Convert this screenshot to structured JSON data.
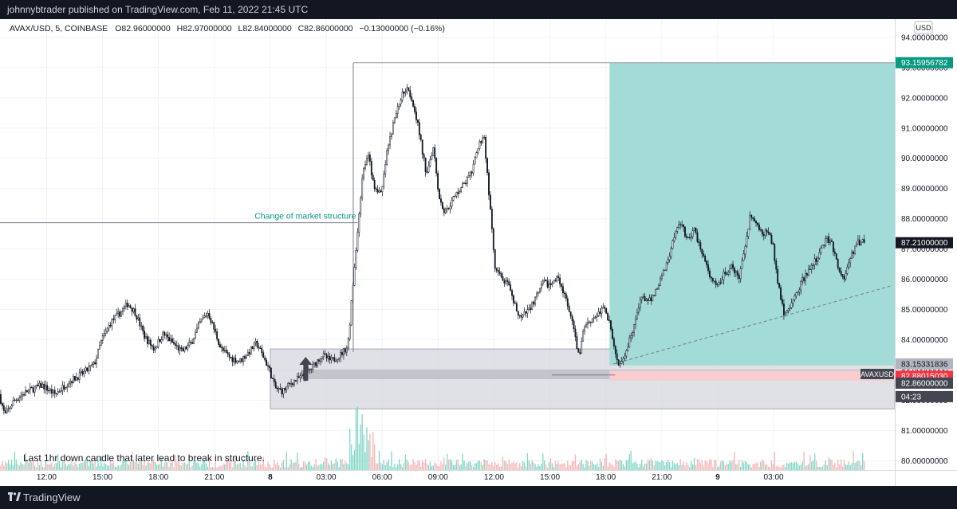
{
  "header": {
    "publisher_line": "johnnybtrader published on TradingView.com, Feb 11, 2022 21:45 UTC"
  },
  "footer": {
    "brand": "TradingView",
    "logo_icon": "tradingview-logo-icon"
  },
  "chart_data": {
    "type": "candlestick",
    "symbol_line": "AVAX/USD, 5, COINBASE",
    "ohlc_readout": [
      {
        "key": "O",
        "value": "82.96000000"
      },
      {
        "key": "H",
        "value": "82.97000000"
      },
      {
        "key": "L",
        "value": "82.84000000"
      },
      {
        "key": "C",
        "value": "82.86000000"
      }
    ],
    "change_readout": "−0.13000000 (−0.16%)",
    "currency_badge": "USD",
    "y_axis": {
      "range": [
        79.7,
        94.6
      ],
      "ticks": [
        "94.00000000",
        "93.00000000",
        "92.00000000",
        "91.00000000",
        "90.00000000",
        "89.00000000",
        "88.00000000",
        "87.00000000",
        "86.00000000",
        "85.00000000",
        "84.00000000",
        "83.00000000",
        "82.00000000",
        "81.00000000",
        "80.00000000"
      ]
    },
    "x_axis": {
      "range_hours": [
        9.5,
        57.5
      ],
      "ticks": [
        {
          "label": "12:00",
          "h": 12
        },
        {
          "label": "15:00",
          "h": 15
        },
        {
          "label": "18:00",
          "h": 18
        },
        {
          "label": "21:00",
          "h": 21
        },
        {
          "label": "8",
          "h": 24,
          "bold": true
        },
        {
          "label": "03:00",
          "h": 27
        },
        {
          "label": "06:00",
          "h": 30
        },
        {
          "label": "09:00",
          "h": 33
        },
        {
          "label": "12:00",
          "h": 36
        },
        {
          "label": "15:00",
          "h": 39
        },
        {
          "label": "18:00",
          "h": 42
        },
        {
          "label": "21:00",
          "h": 45
        },
        {
          "label": "9",
          "h": 48,
          "bold": true
        },
        {
          "label": "03:00",
          "h": 51
        }
      ]
    },
    "price_path": [
      [
        9.5,
        82.2
      ],
      [
        9.8,
        81.5
      ],
      [
        10.3,
        82.0
      ],
      [
        11,
        82.3
      ],
      [
        11.8,
        82.5
      ],
      [
        12.5,
        82.2
      ],
      [
        13.2,
        82.6
      ],
      [
        14,
        82.9
      ],
      [
        14.6,
        83.2
      ],
      [
        15,
        84.0
      ],
      [
        15.5,
        84.6
      ],
      [
        16,
        84.9
      ],
      [
        16.4,
        85.2
      ],
      [
        16.8,
        84.9
      ],
      [
        17.3,
        84.1
      ],
      [
        17.8,
        83.7
      ],
      [
        18.3,
        84.2
      ],
      [
        18.8,
        83.9
      ],
      [
        19.3,
        83.6
      ],
      [
        19.8,
        83.9
      ],
      [
        20.3,
        84.6
      ],
      [
        20.7,
        84.9
      ],
      [
        21,
        84.4
      ],
      [
        21.4,
        83.7
      ],
      [
        21.9,
        83.4
      ],
      [
        22.4,
        83.3
      ],
      [
        22.9,
        83.6
      ],
      [
        23.3,
        83.9
      ],
      [
        23.7,
        83.4
      ],
      [
        24,
        83.0
      ],
      [
        24.3,
        82.4
      ],
      [
        24.7,
        82.3
      ],
      [
        25.2,
        82.6
      ],
      [
        25.8,
        82.8
      ],
      [
        26.3,
        83.1
      ],
      [
        26.8,
        83.5
      ],
      [
        27.3,
        83.3
      ],
      [
        27.8,
        83.5
      ],
      [
        28.2,
        83.8
      ],
      [
        28.5,
        86.0
      ],
      [
        28.7,
        87.4
      ],
      [
        29,
        89.6
      ],
      [
        29.3,
        90.1
      ],
      [
        29.6,
        89.1
      ],
      [
        30,
        88.8
      ],
      [
        30.3,
        90.2
      ],
      [
        30.7,
        91.3
      ],
      [
        31.1,
        92.1
      ],
      [
        31.4,
        92.4
      ],
      [
        31.8,
        91.6
      ],
      [
        32.1,
        90.6
      ],
      [
        32.4,
        89.5
      ],
      [
        32.8,
        90.4
      ],
      [
        33.1,
        88.7
      ],
      [
        33.4,
        88.2
      ],
      [
        33.8,
        88.6
      ],
      [
        34.1,
        88.9
      ],
      [
        34.5,
        89.2
      ],
      [
        34.9,
        89.6
      ],
      [
        35.2,
        90.4
      ],
      [
        35.5,
        90.8
      ],
      [
        35.8,
        88.6
      ],
      [
        36.1,
        86.3
      ],
      [
        36.5,
        86.0
      ],
      [
        36.8,
        85.8
      ],
      [
        37.1,
        85.2
      ],
      [
        37.5,
        84.7
      ],
      [
        37.9,
        85.0
      ],
      [
        38.3,
        85.4
      ],
      [
        38.7,
        85.9
      ],
      [
        39.1,
        85.8
      ],
      [
        39.5,
        86.1
      ],
      [
        39.9,
        85.3
      ],
      [
        40.3,
        84.4
      ],
      [
        40.6,
        83.4
      ],
      [
        40.9,
        84.5
      ],
      [
        41.3,
        84.7
      ],
      [
        41.7,
        84.9
      ],
      [
        42,
        85.1
      ],
      [
        42.3,
        84.4
      ],
      [
        42.5,
        83.6
      ],
      [
        42.7,
        83.2
      ],
      [
        43.1,
        83.6
      ],
      [
        43.4,
        84.2
      ],
      [
        43.7,
        84.8
      ],
      [
        44,
        85.5
      ],
      [
        44.3,
        85.2
      ],
      [
        44.7,
        85.6
      ],
      [
        45.1,
        86.2
      ],
      [
        45.5,
        86.9
      ],
      [
        45.8,
        87.7
      ],
      [
        46.1,
        87.9
      ],
      [
        46.4,
        87.3
      ],
      [
        46.8,
        87.6
      ],
      [
        47.2,
        86.9
      ],
      [
        47.6,
        86.1
      ],
      [
        48,
        85.7
      ],
      [
        48.4,
        86.2
      ],
      [
        48.8,
        86.4
      ],
      [
        49.2,
        86.0
      ],
      [
        49.5,
        87.1
      ],
      [
        49.8,
        88.2
      ],
      [
        50.1,
        87.8
      ],
      [
        50.4,
        87.5
      ],
      [
        50.7,
        87.6
      ],
      [
        51,
        87.1
      ],
      [
        51.3,
        85.8
      ],
      [
        51.6,
        84.9
      ],
      [
        51.9,
        85.0
      ],
      [
        52.3,
        85.6
      ],
      [
        52.7,
        86.1
      ],
      [
        53.1,
        86.4
      ],
      [
        53.5,
        86.9
      ],
      [
        53.9,
        87.4
      ],
      [
        54.2,
        87.1
      ],
      [
        54.5,
        86.4
      ],
      [
        54.8,
        86.0
      ],
      [
        55.1,
        86.6
      ],
      [
        55.5,
        87.2
      ],
      [
        55.9,
        87.3
      ]
    ],
    "candle_count": 560,
    "volume_scale_note": "",
    "zones": {
      "demand_zone": [
        81.72,
        83.7
      ],
      "inner_candle_band": [
        82.7,
        83.02
      ],
      "long_target": 93.15956782,
      "long_entry": 83.15331836,
      "stop_band": [
        82.65,
        82.98
      ]
    },
    "annotations": {
      "change_of_structure_label": "Change of market structure",
      "change_of_structure_price": 87.87,
      "change_of_structure_until_h": 29.1,
      "bottom_note": "Last 1hr down candle that later lead to break in structure.",
      "arrow_icon": "up-arrow-icon",
      "arrow_h": 25.9
    },
    "price_labels": [
      {
        "name": "target",
        "value": "93.15956782",
        "price": 93.15956782,
        "color": "#089981",
        "text_color": "#ffffff"
      },
      {
        "name": "current",
        "value": "87.21000000",
        "price": 87.21,
        "color": "#131722",
        "text_color": "#ffffff"
      },
      {
        "name": "entry",
        "value": "83.15331836",
        "price": 83.15331836,
        "color": "#b2b5be",
        "text_color": "#131722"
      },
      {
        "name": "stop",
        "value": "82.88015030",
        "price": 82.8801503,
        "color": "#f23645",
        "text_color": "#ffffff"
      },
      {
        "name": "last",
        "value": "82.86000000",
        "price": 82.86,
        "color": "#434651",
        "text_color": "#ffffff"
      },
      {
        "name": "countdown",
        "value": "04:23",
        "price": 82.4,
        "color": "#434651",
        "text_color": "#ffffff"
      }
    ],
    "symbol_tag": "AVAXUSD",
    "colors": {
      "up": "#ffffff",
      "down": "#131722",
      "target_zone": "#a3dbd6",
      "stop_zone": "#f7cdd0",
      "vol_up": "#6ed1bd",
      "vol_down": "#f5a9a9"
    }
  }
}
